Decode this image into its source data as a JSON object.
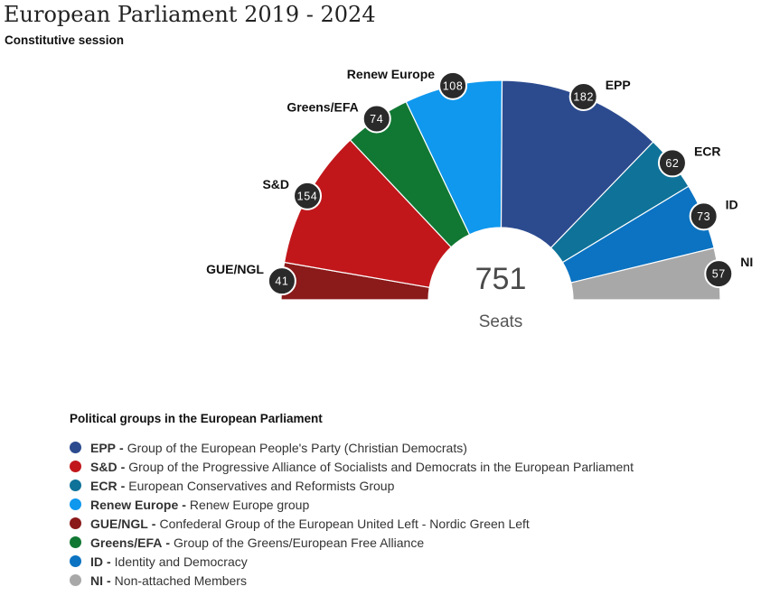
{
  "header": {
    "title": "European Parliament 2019 - 2024",
    "subtitle": "Constitutive session"
  },
  "chart_data": {
    "type": "pie",
    "variant": "parliament-semicircle",
    "title": "European Parliament 2019 - 2024",
    "subtitle": "Constitutive session",
    "total": 751,
    "total_label": "Seats",
    "series": [
      {
        "name": "GUE/NGL",
        "value": 41,
        "color": "#8b1a1a"
      },
      {
        "name": "S&D",
        "value": 154,
        "color": "#c1171b"
      },
      {
        "name": "Greens/EFA",
        "value": 74,
        "color": "#117833"
      },
      {
        "name": "Renew Europe",
        "value": 108,
        "color": "#0f98ee"
      },
      {
        "name": "EPP",
        "value": 182,
        "color": "#2c4b8f"
      },
      {
        "name": "ECR",
        "value": 62,
        "color": "#0f7299"
      },
      {
        "name": "ID",
        "value": 73,
        "color": "#0b73c2"
      },
      {
        "name": "NI",
        "value": 57,
        "color": "#a8a8a8"
      }
    ]
  },
  "legend": {
    "title": "Political groups in the European Parliament",
    "separator": "-",
    "items": [
      {
        "abbr": "EPP",
        "desc": "Group of the European People's Party (Christian Democrats)",
        "color": "#2c4b8f"
      },
      {
        "abbr": "S&D",
        "desc": "Group of the Progressive Alliance of Socialists and Democrats in the European Parliament",
        "color": "#c1171b"
      },
      {
        "abbr": "ECR",
        "desc": "European Conservatives and Reformists Group",
        "color": "#0f7299"
      },
      {
        "abbr": "Renew Europe",
        "desc": "Renew Europe group",
        "color": "#0f98ee"
      },
      {
        "abbr": "GUE/NGL",
        "desc": "Confederal Group of the European United Left - Nordic Green Left",
        "color": "#8b1a1a"
      },
      {
        "abbr": "Greens/EFA",
        "desc": "Group of the Greens/European Free Alliance",
        "color": "#117833"
      },
      {
        "abbr": "ID",
        "desc": "Identity and Democracy",
        "color": "#0b73c2"
      },
      {
        "abbr": "NI",
        "desc": "Non-attached Members",
        "color": "#a8a8a8"
      }
    ]
  }
}
